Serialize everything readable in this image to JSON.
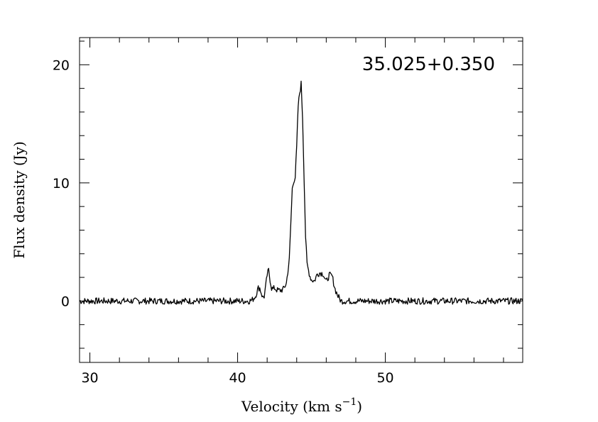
{
  "chart_data": {
    "type": "line",
    "title": "35.025+0.350",
    "xlabel": "Velocity (km s",
    "xlabel_sup": "−1",
    "xlabel_end": ")",
    "ylabel": "Flux density (Jy)",
    "xlim": [
      29.3,
      59.3
    ],
    "ylim": [
      -5.2,
      22.3
    ],
    "x_ticks": [
      30,
      40,
      50
    ],
    "x_tick_labels": [
      "30",
      "40",
      "50"
    ],
    "y_ticks": [
      0,
      10,
      20
    ],
    "y_tick_labels": [
      "0",
      "10",
      "20"
    ],
    "grid": false,
    "line_color": "#000000",
    "series": [
      {
        "x": [
          29.3,
          30.0,
          31.0,
          32.0,
          33.0,
          34.0,
          35.0,
          36.0,
          37.0,
          38.0,
          39.0,
          40.0,
          40.8,
          41.0,
          41.2,
          41.4,
          41.5,
          41.6,
          41.7,
          41.8,
          41.9,
          42.0,
          42.1,
          42.2,
          42.3,
          42.4,
          42.5,
          42.7,
          42.9,
          43.1,
          43.3,
          43.5,
          43.7,
          43.8,
          43.9,
          44.0,
          44.1,
          44.2,
          44.3,
          44.4,
          44.5,
          44.6,
          44.7,
          44.8,
          44.9,
          45.0,
          45.2,
          45.4,
          45.6,
          45.8,
          46.0,
          46.2,
          46.4,
          46.6,
          46.8,
          47.0,
          47.2,
          47.5,
          48.0,
          49.0,
          50.0,
          51.0,
          52.0,
          53.0,
          54.0,
          55.0,
          56.0,
          57.0,
          58.0,
          59.3
        ],
        "y": [
          0.0,
          0.0,
          0.0,
          0.0,
          0.0,
          0.0,
          0.0,
          0.0,
          0.0,
          0.0,
          0.0,
          0.0,
          0.0,
          0.1,
          0.4,
          1.1,
          1.1,
          0.7,
          0.3,
          0.4,
          1.2,
          2.2,
          2.6,
          1.8,
          1.1,
          1.0,
          1.1,
          0.9,
          0.9,
          1.0,
          1.5,
          3.5,
          9.5,
          10.2,
          10.5,
          13.0,
          16.5,
          17.6,
          18.4,
          15.5,
          10.5,
          5.5,
          3.1,
          2.6,
          2.1,
          1.8,
          1.7,
          2.3,
          2.4,
          2.3,
          1.6,
          2.2,
          2.1,
          1.0,
          0.4,
          0.0,
          0.0,
          0.0,
          0.0,
          0.0,
          0.0,
          0.0,
          0.0,
          0.0,
          0.0,
          0.0,
          0.0,
          0.0,
          0.0,
          0.0
        ]
      }
    ]
  }
}
